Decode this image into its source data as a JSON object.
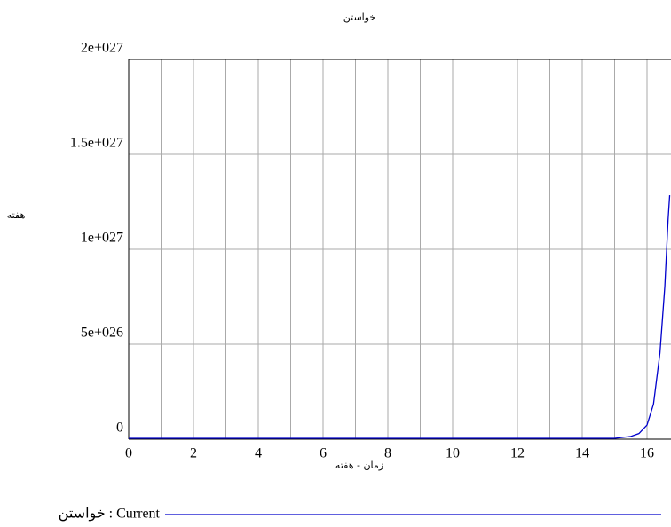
{
  "chart_data": {
    "type": "line",
    "title": "خواستن",
    "y_label": "هفته",
    "x_label": "زمان - هفته",
    "x": [
      0,
      15,
      15.5,
      15.75,
      16,
      16.2,
      16.4,
      16.55,
      16.65,
      16.7
    ],
    "series": [
      {
        "name": "خواستن : Current",
        "color": "#0000cc",
        "values": [
          0,
          0,
          1e+25,
          2.5e+25,
          7e+25,
          1.8e+26,
          4.5e+26,
          8e+26,
          1.15e+27,
          1.28e+27
        ]
      }
    ],
    "xlim": [
      0,
      20
    ],
    "xticks": [
      0,
      2,
      4,
      6,
      8,
      10,
      12,
      14,
      16
    ],
    "ylim": [
      0,
      2e+27
    ],
    "yticks": [
      {
        "value": 0,
        "label": "0"
      },
      {
        "value": 5e+26,
        "label": "5e+026"
      },
      {
        "value": 1e+27,
        "label": "1e+027"
      },
      {
        "value": 1.5e+27,
        "label": "1.5e+027"
      },
      {
        "value": 2e+27,
        "label": "2e+027"
      }
    ],
    "grid": true
  }
}
